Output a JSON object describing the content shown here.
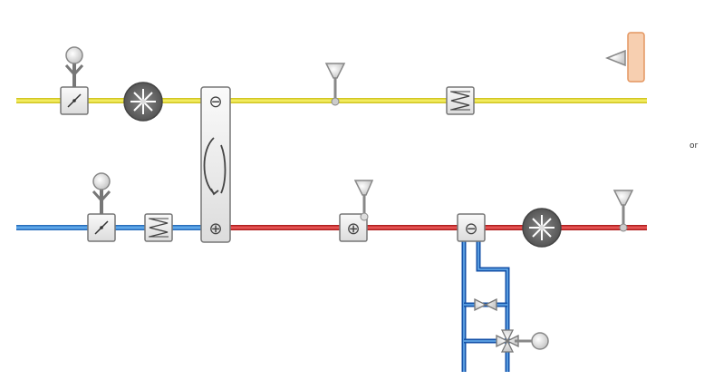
{
  "edge_text": "or",
  "colors": {
    "exhaust_duct": "#e6dc1e",
    "outdoor_duct": "#2a7fd4",
    "supply_duct": "#d81e1e",
    "water_pipe": "#1e6fcf",
    "component_fill": "#eeeeee",
    "component_border": "#7a7a7a",
    "fan_fill": "#666666",
    "room_unit_fill": "#f5c9a8",
    "room_unit_border": "#e59a5e"
  },
  "symbols": {
    "minus": "⊖",
    "plus": "⊕"
  },
  "components": [
    {
      "id": "exhaust-damper",
      "icon": "damper-icon",
      "actuator": true
    },
    {
      "id": "exhaust-fan",
      "icon": "fan-icon"
    },
    {
      "id": "heat-recovery-wheel",
      "icon": "rotary-heat-exchanger-icon"
    },
    {
      "id": "exhaust-sensor",
      "icon": "sensor-icon"
    },
    {
      "id": "exhaust-filter",
      "icon": "filter-icon"
    },
    {
      "id": "room-unit",
      "icon": "room-unit-icon"
    },
    {
      "id": "outdoor-damper",
      "icon": "damper-icon",
      "actuator": true
    },
    {
      "id": "outdoor-filter",
      "icon": "filter-icon"
    },
    {
      "id": "heating-coil",
      "icon": "heating-coil-icon"
    },
    {
      "id": "cooling-coil",
      "icon": "cooling-coil-icon"
    },
    {
      "id": "supply-fan",
      "icon": "fan-icon"
    },
    {
      "id": "supply-sensor",
      "icon": "sensor-icon"
    },
    {
      "id": "balancing-valve",
      "icon": "valve-icon"
    },
    {
      "id": "three-way-valve",
      "icon": "three-way-valve-icon",
      "actuator": true
    }
  ]
}
